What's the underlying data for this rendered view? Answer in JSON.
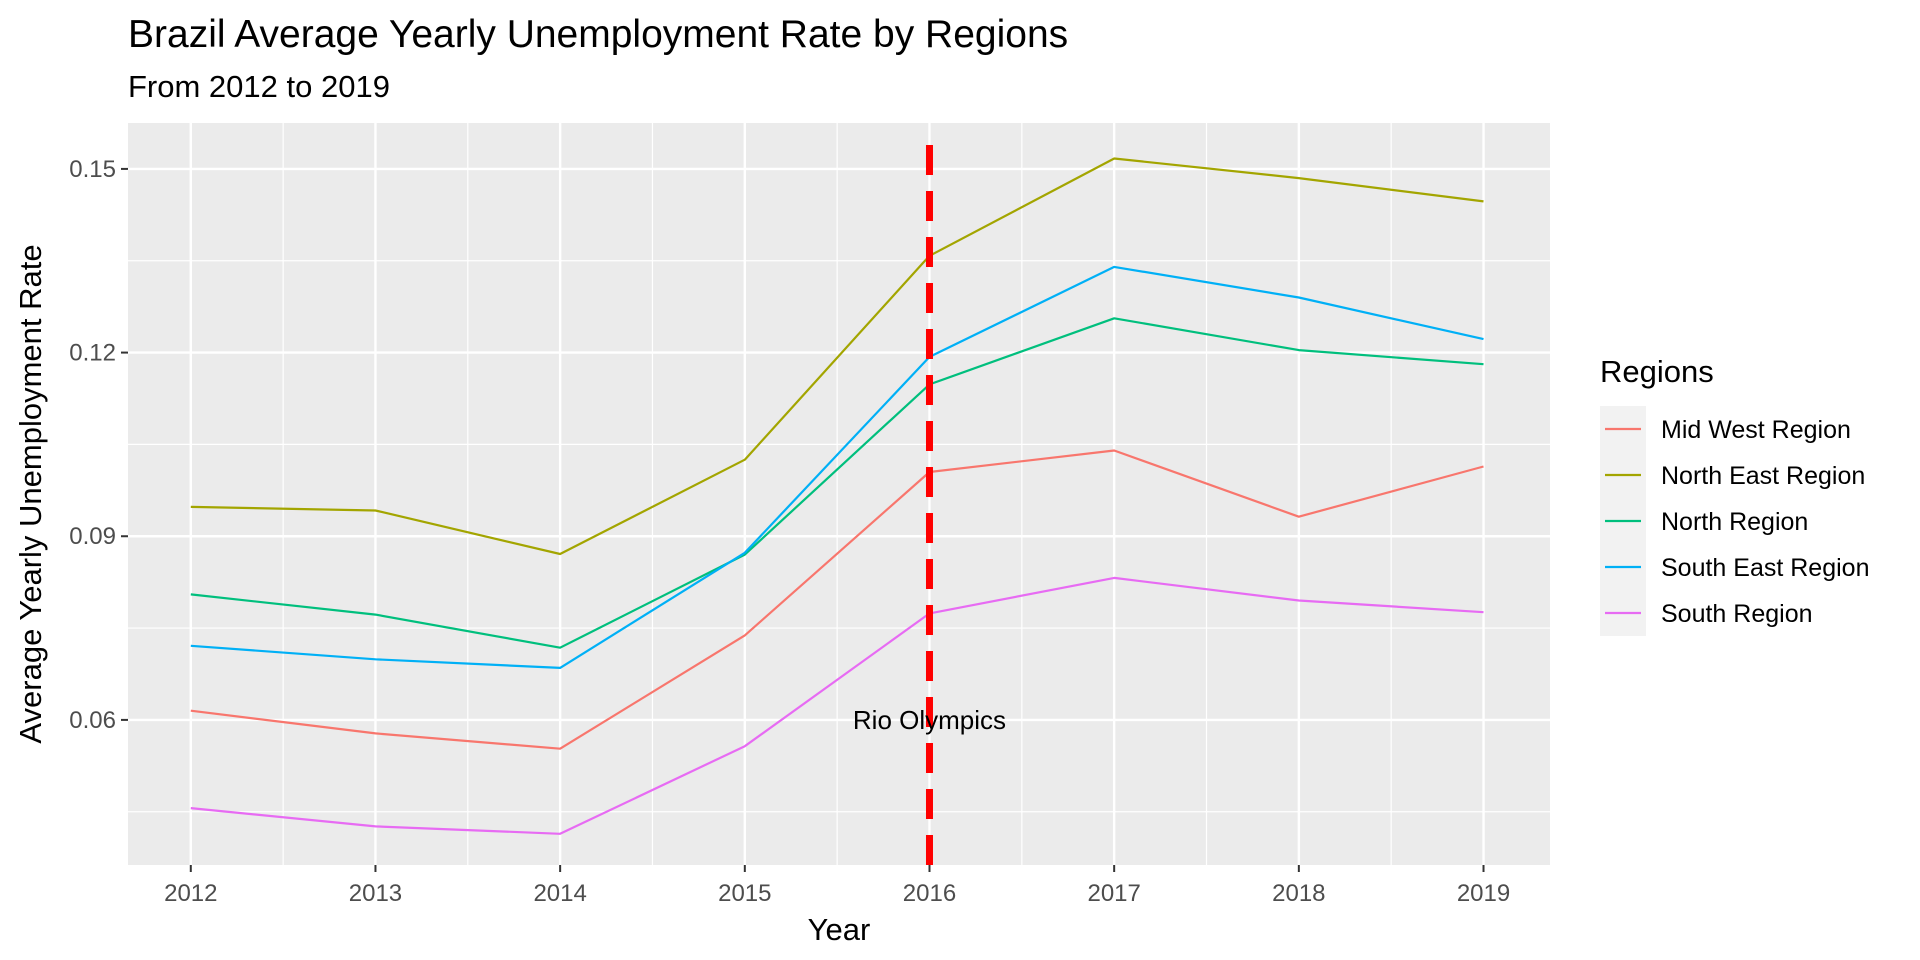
{
  "chart_data": {
    "type": "line",
    "title": "Brazil Average Yearly Unemployment Rate by Regions",
    "subtitle": "From 2012 to 2019",
    "xlabel": "Year",
    "ylabel": "Average Yearly Unemployment Rate",
    "x": [
      2012,
      2013,
      2014,
      2015,
      2016,
      2017,
      2018,
      2019
    ],
    "xlim": [
      2011.66,
      2019.36
    ],
    "ylim": [
      0.0363,
      0.1575
    ],
    "y_ticks": [
      0.06,
      0.09,
      0.12,
      0.15
    ],
    "y_tick_labels": [
      "0.06",
      "0.09",
      "0.12",
      "0.15"
    ],
    "x_tick_labels": [
      "2012",
      "2013",
      "2014",
      "2015",
      "2016",
      "2017",
      "2018",
      "2019"
    ],
    "grid": true,
    "legend": {
      "title": "Regions",
      "position": "right"
    },
    "series": [
      {
        "name": "Mid West Region",
        "color": "#F8766D",
        "values": [
          0.0615,
          0.0578,
          0.0553,
          0.0738,
          0.1005,
          0.104,
          0.0932,
          0.1014
        ]
      },
      {
        "name": "North East Region",
        "color": "#A3A500",
        "values": [
          0.0948,
          0.0942,
          0.0871,
          0.1025,
          0.1358,
          0.1517,
          0.1485,
          0.1447
        ]
      },
      {
        "name": "North Region",
        "color": "#00BF7D",
        "values": [
          0.0805,
          0.0772,
          0.0718,
          0.087,
          0.1148,
          0.1256,
          0.1204,
          0.1181
        ]
      },
      {
        "name": "South East Region",
        "color": "#00B0F6",
        "values": [
          0.0721,
          0.0699,
          0.0685,
          0.0873,
          0.1193,
          0.134,
          0.129,
          0.1222
        ]
      },
      {
        "name": "South Region",
        "color": "#E76BF3",
        "values": [
          0.0456,
          0.0426,
          0.0414,
          0.0557,
          0.0774,
          0.0832,
          0.0795,
          0.0776
        ]
      }
    ],
    "vline": {
      "x": 2016,
      "color": "#FF0000",
      "style": "dashed"
    },
    "annotations": [
      {
        "text": "Rio Olympics",
        "x": 2016,
        "y": 0.06
      }
    ]
  }
}
